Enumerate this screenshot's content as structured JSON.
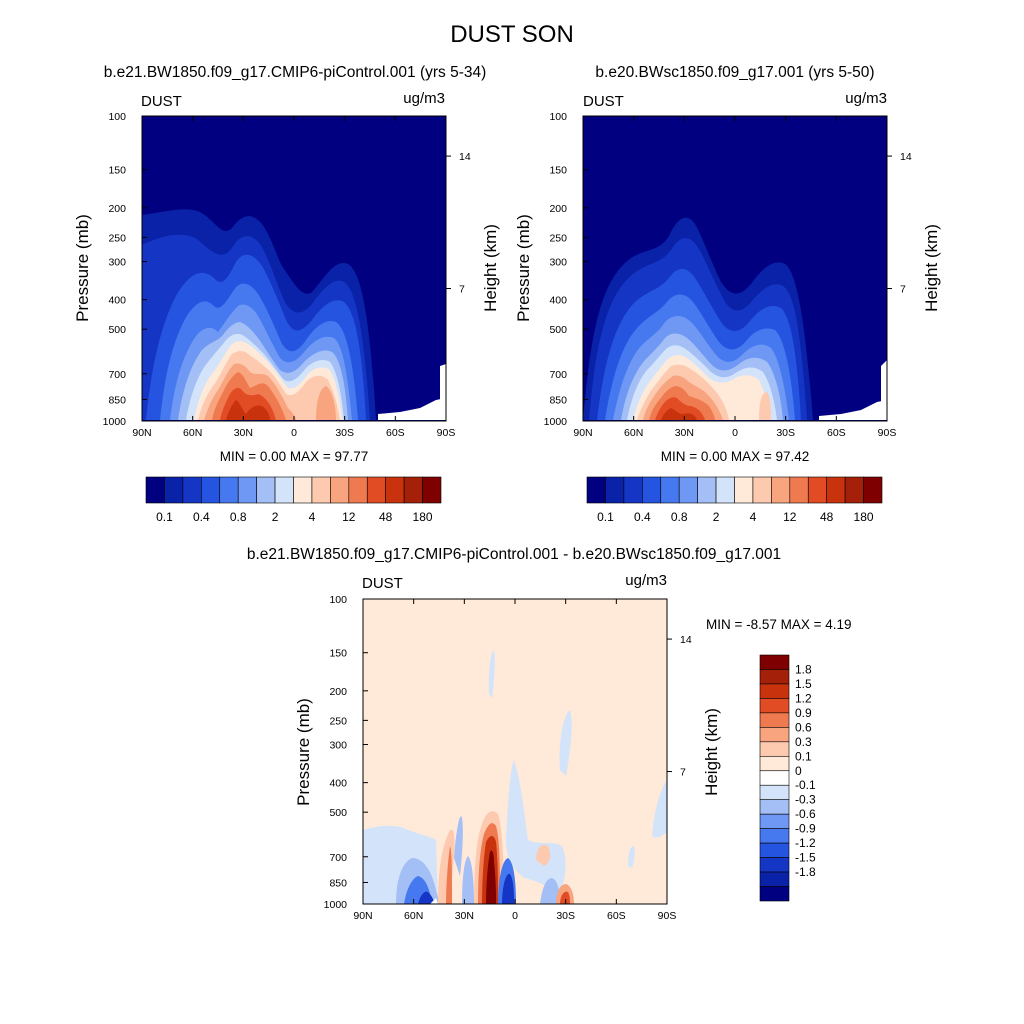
{
  "figure": {
    "title": "DUST SON"
  },
  "colors": {
    "control_scale": [
      "#000080",
      "#0a22a8",
      "#1536c4",
      "#2555e0",
      "#4678f0",
      "#6e98f4",
      "#a3bff6",
      "#d3e4fa",
      "#ffe9d9",
      "#fdcab0",
      "#f8a57f",
      "#ef7a4f",
      "#e24c25",
      "#c8330e",
      "#a52009",
      "#7f0000"
    ],
    "diff_scale": [
      "#000080",
      "#0a22a8",
      "#1536c4",
      "#2555e0",
      "#4678f0",
      "#6e98f4",
      "#a3bff6",
      "#d3e4fa",
      "#ffffff",
      "#ffe9d9",
      "#fdcab0",
      "#f8a57f",
      "#ef7a4f",
      "#e24c25",
      "#c8330e",
      "#a52009",
      "#7f0000"
    ]
  },
  "chart_data": [
    {
      "type": "heatmap",
      "title": "b.e21.BW1850.f09_g17.CMIP6-piControl.001 (yrs 5-34)",
      "left_label": "DUST",
      "unit": "ug/m3",
      "ylabel": "Pressure (mb)",
      "y2label": "Height (km)",
      "x_ticks": [
        "90N",
        "60N",
        "30N",
        "0",
        "30S",
        "60S",
        "90S"
      ],
      "y_ticks": [
        "100",
        "150",
        "200",
        "250",
        "300",
        "400",
        "500",
        "700",
        "850",
        "1000"
      ],
      "y2_ticks": [
        "14",
        "7"
      ],
      "min_max": "MIN =   0.00  MAX =  97.77",
      "colorbar_labels": [
        "0.1",
        "0.4",
        "0.8",
        "2",
        "4",
        "12",
        "48",
        "180"
      ]
    },
    {
      "type": "heatmap",
      "title": "b.e20.BWsc1850.f09_g17.001 (yrs 5-50)",
      "left_label": "DUST",
      "unit": "ug/m3",
      "ylabel": "Pressure (mb)",
      "y2label": "Height (km)",
      "x_ticks": [
        "90N",
        "60N",
        "30N",
        "0",
        "30S",
        "60S",
        "90S"
      ],
      "y_ticks": [
        "100",
        "150",
        "200",
        "250",
        "300",
        "400",
        "500",
        "700",
        "850",
        "1000"
      ],
      "y2_ticks": [
        "14",
        "7"
      ],
      "min_max": "MIN =   0.00  MAX =  97.42",
      "colorbar_labels": [
        "0.1",
        "0.4",
        "0.8",
        "2",
        "4",
        "12",
        "48",
        "180"
      ]
    },
    {
      "type": "heatmap",
      "title": "b.e21.BW1850.f09_g17.CMIP6-piControl.001 - b.e20.BWsc1850.f09_g17.001",
      "left_label": "DUST",
      "unit": "ug/m3",
      "ylabel": "Pressure (mb)",
      "y2label": "Height (km)",
      "x_ticks": [
        "90N",
        "60N",
        "30N",
        "0",
        "30S",
        "60S",
        "90S"
      ],
      "y_ticks": [
        "100",
        "150",
        "200",
        "250",
        "300",
        "400",
        "500",
        "700",
        "850",
        "1000"
      ],
      "y2_ticks": [
        "14",
        "7"
      ],
      "min_max": "MIN =  -8.57  MAX =   4.19",
      "colorbar_labels": [
        "1.8",
        "1.5",
        "1.2",
        "0.9",
        "0.6",
        "0.3",
        "0.1",
        "0",
        "-0.1",
        "-0.3",
        "-0.6",
        "-0.9",
        "-1.2",
        "-1.5",
        "-1.8"
      ]
    }
  ]
}
